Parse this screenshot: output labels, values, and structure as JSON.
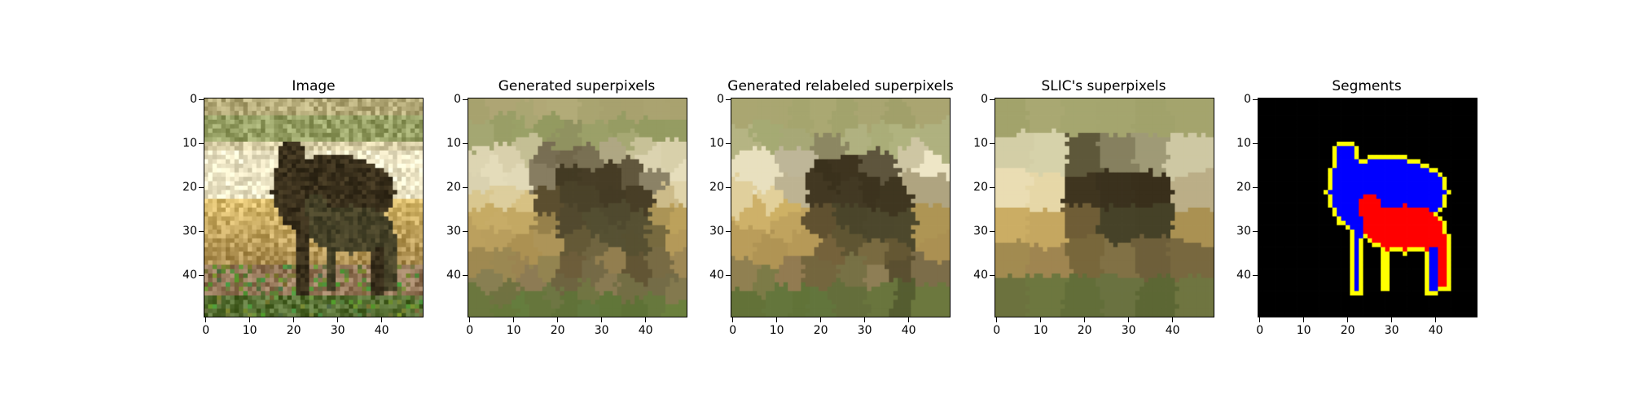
{
  "figure": {
    "panels": [
      {
        "title": "Image",
        "kind": "photo"
      },
      {
        "title": "Generated superpixels",
        "kind": "superpixels"
      },
      {
        "title": "Generated relabeled superpixels",
        "kind": "relabeled"
      },
      {
        "title": "SLIC's superpixels",
        "kind": "slic"
      },
      {
        "title": "Segments",
        "kind": "segments"
      }
    ],
    "axis": {
      "xticks": [
        "0",
        "10",
        "20",
        "30",
        "40"
      ],
      "yticks": [
        "0",
        "10",
        "20",
        "30",
        "40"
      ],
      "pixels": 50
    },
    "segment_colors": {
      "background": "#000000",
      "large_sheep": "#0000ff",
      "small_sheep": "#ff0000",
      "boundary": "#ffff00"
    }
  }
}
